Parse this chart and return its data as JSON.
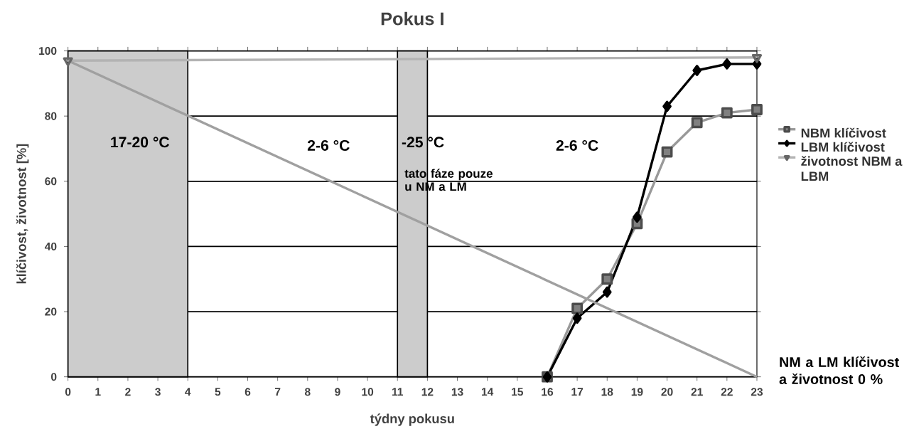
{
  "chart_data": {
    "type": "line",
    "title": "Pokus I",
    "xlabel": "týdny pokusu",
    "ylabel": "klíčivost, životnost [%]",
    "series": [
      {
        "name": "NBM klíčivost",
        "color": "#999999",
        "marker": "square",
        "x": [
          16,
          17,
          18,
          19,
          20,
          21,
          22,
          23
        ],
        "values": [
          0,
          21,
          30,
          47,
          69,
          78,
          81,
          82
        ]
      },
      {
        "name": "LBM klíčivost",
        "color": "#000000",
        "marker": "diamond",
        "x": [
          16,
          17,
          18,
          19,
          20,
          21,
          22,
          23
        ],
        "values": [
          0,
          18,
          26,
          49,
          83,
          94,
          96,
          96
        ]
      },
      {
        "name": "životnost NBM a LBM",
        "color": "#b3b3b3",
        "marker": "triangle",
        "x": [
          0,
          23
        ],
        "values": [
          97,
          98
        ]
      },
      {
        "color": "#a0a0a0",
        "marker": "none",
        "x": [
          0,
          23
        ],
        "values": [
          97,
          0
        ]
      }
    ],
    "bands": [
      {
        "axis": "x",
        "from": 0,
        "to": 4,
        "label": "17-20 °C",
        "color": "#cccccc"
      },
      {
        "axis": "x",
        "from": 11,
        "to": 12,
        "label": "-25 °C",
        "color": "#cccccc"
      }
    ],
    "annotations": [
      "2-6 °C",
      "2-6 °C",
      "tato fáze pouze u NM a LM",
      "NM a LM klíčivost a životnost 0 %"
    ],
    "xlim": [
      0,
      23
    ],
    "ylim": [
      0,
      100
    ],
    "xticks": [
      0,
      1,
      2,
      3,
      4,
      5,
      6,
      7,
      8,
      9,
      10,
      11,
      12,
      13,
      14,
      15,
      16,
      17,
      18,
      19,
      20,
      21,
      22,
      23
    ],
    "yticks": [
      0,
      20,
      40,
      60,
      80,
      100
    ],
    "grid": "y",
    "legend": "right",
    "line_style": "solid"
  }
}
